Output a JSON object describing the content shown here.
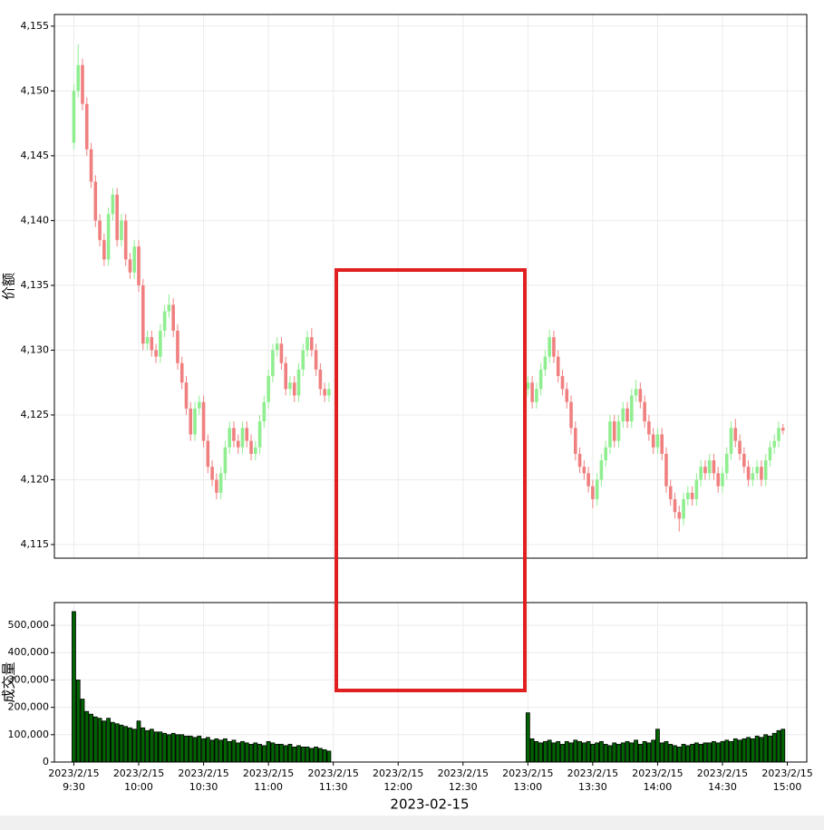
{
  "chart_data": [
    {
      "type": "candlestick",
      "y_label": "价额",
      "up_color": "#90ee90",
      "down_color": "#f08080",
      "grid": true,
      "xlim": [
        "9:21",
        "15:09"
      ],
      "ylim": [
        4113.95,
        4155.9
      ],
      "yticks": [
        {
          "value": 4115,
          "label": "4,115"
        },
        {
          "value": 4120,
          "label": "4,120"
        },
        {
          "value": 4125,
          "label": "4,125"
        },
        {
          "value": 4130,
          "label": "4,130"
        },
        {
          "value": 4135,
          "label": "4,135"
        },
        {
          "value": 4140,
          "label": "4,140"
        },
        {
          "value": 4145,
          "label": "4,145"
        },
        {
          "value": 4150,
          "label": "4,150"
        },
        {
          "value": 4155,
          "label": "4,155"
        }
      ],
      "x": [
        "9:30",
        "9:32",
        "9:34",
        "9:36",
        "9:38",
        "9:40",
        "9:42",
        "9:44",
        "9:46",
        "9:48",
        "9:50",
        "9:52",
        "9:54",
        "9:56",
        "9:58",
        "10:00",
        "10:02",
        "10:04",
        "10:06",
        "10:08",
        "10:10",
        "10:12",
        "10:14",
        "10:16",
        "10:18",
        "10:20",
        "10:22",
        "10:24",
        "10:26",
        "10:28",
        "10:30",
        "10:32",
        "10:34",
        "10:36",
        "10:38",
        "10:40",
        "10:42",
        "10:44",
        "10:46",
        "10:48",
        "10:50",
        "10:52",
        "10:54",
        "10:56",
        "10:58",
        "11:00",
        "11:02",
        "11:04",
        "11:06",
        "11:08",
        "11:10",
        "11:12",
        "11:14",
        "11:16",
        "11:18",
        "11:20",
        "11:22",
        "11:24",
        "11:26",
        "11:28",
        "13:00",
        "13:02",
        "13:04",
        "13:06",
        "13:08",
        "13:10",
        "13:12",
        "13:14",
        "13:16",
        "13:18",
        "13:20",
        "13:22",
        "13:24",
        "13:26",
        "13:28",
        "13:30",
        "13:32",
        "13:34",
        "13:36",
        "13:38",
        "13:40",
        "13:42",
        "13:44",
        "13:46",
        "13:48",
        "13:50",
        "13:52",
        "13:54",
        "13:56",
        "13:58",
        "14:00",
        "14:02",
        "14:04",
        "14:06",
        "14:08",
        "14:10",
        "14:12",
        "14:14",
        "14:16",
        "14:18",
        "14:20",
        "14:22",
        "14:24",
        "14:26",
        "14:28",
        "14:30",
        "14:32",
        "14:34",
        "14:36",
        "14:38",
        "14:40",
        "14:42",
        "14:44",
        "14:46",
        "14:48",
        "14:50",
        "14:52",
        "14:54",
        "14:56",
        "14:58"
      ],
      "open": [
        4146,
        4150,
        4152,
        4149,
        4145.5,
        4143,
        4140,
        4138.5,
        4137,
        4140.5,
        4142,
        4138.5,
        4140,
        4137,
        4136,
        4138,
        4135,
        4130.5,
        4131,
        4130,
        4129.5,
        4131.5,
        4133,
        4133.5,
        4131.5,
        4129,
        4127.5,
        4125.5,
        4123.5,
        4125.5,
        4126,
        4123,
        4121,
        4120,
        4119,
        4120.5,
        4122.5,
        4124,
        4123,
        4122.5,
        4124,
        4123,
        4122,
        4122.5,
        4124.5,
        4126,
        4128,
        4130,
        4130.5,
        4129,
        4127,
        4127.5,
        4126.5,
        4128.5,
        4130,
        4131,
        4130,
        4128.5,
        4127,
        4126.5,
        4127,
        4127.5,
        4126,
        4127,
        4128.5,
        4129.5,
        4131,
        4129.5,
        4128,
        4127,
        4126,
        4124,
        4122,
        4121,
        4120.5,
        4119.5,
        4118.5,
        4120,
        4121.5,
        4122.5,
        4124.5,
        4123,
        4124.5,
        4125.5,
        4124.5,
        4126.5,
        4127,
        4126,
        4124.5,
        4123.5,
        4122.5,
        4123.5,
        4122,
        4119.5,
        4118.5,
        4117.5,
        4117,
        4118.5,
        4119,
        4118.5,
        4120,
        4121,
        4120.5,
        4121.5,
        4120.5,
        4119.5,
        4120.5,
        4122,
        4124,
        4123,
        4122,
        4121,
        4120,
        4120.5,
        4121,
        4120,
        4121.5,
        4122.5,
        4123,
        4124
      ],
      "high": [
        4150.5,
        4153.6,
        4152.5,
        4149.5,
        4146,
        4143.5,
        4140.5,
        4139,
        4141,
        4142.5,
        4142.5,
        4140.5,
        4140.5,
        4137.5,
        4138.5,
        4138.5,
        4135.5,
        4131.5,
        4131.5,
        4130.5,
        4132,
        4133.5,
        4134.3,
        4134,
        4132,
        4129.5,
        4128,
        4126,
        4126,
        4126.5,
        4126.5,
        4123.5,
        4121.5,
        4120.5,
        4121,
        4123,
        4124.5,
        4124.5,
        4123.5,
        4124.5,
        4124.5,
        4123.5,
        4123,
        4125,
        4126.5,
        4128.5,
        4130.5,
        4131,
        4131,
        4129.5,
        4128,
        4128,
        4129,
        4130.5,
        4131.5,
        4131.7,
        4130.5,
        4129,
        4127.5,
        4127.5,
        4128,
        4128,
        4127.5,
        4129,
        4130,
        4131.6,
        4131.5,
        4130,
        4128.5,
        4127.5,
        4126.5,
        4124.5,
        4122.5,
        4121.5,
        4121,
        4120,
        4120.5,
        4122,
        4123,
        4125,
        4125,
        4125,
        4126,
        4126,
        4127,
        4127.7,
        4127.5,
        4126.5,
        4125,
        4124,
        4124,
        4124,
        4122.5,
        4120,
        4119,
        4118,
        4119,
        4119.5,
        4119.5,
        4120.5,
        4121.5,
        4121.5,
        4122,
        4122,
        4121,
        4121,
        4122.5,
        4124.5,
        4124.7,
        4123.5,
        4122.5,
        4121.5,
        4121,
        4121.5,
        4121.5,
        4122,
        4123,
        4123.5,
        4124.5,
        4124.3
      ],
      "low": [
        4145.5,
        4149.5,
        4148.5,
        4145,
        4142.5,
        4139.5,
        4138,
        4136.5,
        4136.5,
        4140,
        4138,
        4138,
        4136.5,
        4135.5,
        4135.5,
        4134.5,
        4130,
        4130,
        4129.5,
        4129,
        4129,
        4131,
        4132.5,
        4131,
        4128.5,
        4127,
        4125,
        4123,
        4123,
        4125,
        4122.5,
        4120.5,
        4119.5,
        4118.5,
        4118.5,
        4120,
        4122,
        4122.5,
        4122,
        4122,
        4122.5,
        4121.5,
        4121.5,
        4122,
        4124,
        4125.5,
        4127.5,
        4129.5,
        4128.5,
        4126.5,
        4126.5,
        4126,
        4126,
        4128,
        4129.5,
        4129.5,
        4128,
        4126.5,
        4126,
        4126,
        4126.5,
        4125.5,
        4125.5,
        4126.5,
        4128,
        4129,
        4129,
        4127.5,
        4126.5,
        4125.5,
        4123.5,
        4121.5,
        4120.5,
        4120,
        4119,
        4117.8,
        4118,
        4119.5,
        4121,
        4122,
        4122.5,
        4122.5,
        4124,
        4124,
        4124,
        4126,
        4125.5,
        4124,
        4123,
        4122,
        4122,
        4121.5,
        4119,
        4118,
        4117,
        4116,
        4116.5,
        4118,
        4118,
        4118,
        4119.5,
        4120,
        4120,
        4120,
        4119,
        4119,
        4120,
        4121.5,
        4122.5,
        4121.5,
        4120.5,
        4119.5,
        4119.5,
        4120,
        4119.5,
        4119.5,
        4121,
        4122,
        4122.5,
        4123.5
      ],
      "close": [
        4150,
        4152,
        4149,
        4145.5,
        4143,
        4140,
        4138.5,
        4137,
        4140.5,
        4142,
        4138.5,
        4140,
        4137,
        4136,
        4138,
        4135,
        4130.5,
        4131,
        4130,
        4129.5,
        4131.5,
        4133,
        4133.5,
        4131.5,
        4129,
        4127.5,
        4125.5,
        4123.5,
        4125.5,
        4126,
        4123,
        4121,
        4120,
        4119,
        4120.5,
        4122.5,
        4124,
        4123,
        4122.5,
        4124,
        4123,
        4122,
        4122.5,
        4124.5,
        4126,
        4128,
        4130,
        4130.5,
        4129,
        4127,
        4127.5,
        4126.5,
        4128.5,
        4130,
        4131,
        4130,
        4128.5,
        4127,
        4126.5,
        4127,
        4127.5,
        4126,
        4127,
        4128.5,
        4129.5,
        4131,
        4129.5,
        4128,
        4127,
        4126,
        4124,
        4122,
        4121,
        4120.5,
        4119.5,
        4118.5,
        4120,
        4121.5,
        4122.5,
        4124.5,
        4123,
        4124.5,
        4125.5,
        4124.5,
        4126.5,
        4127,
        4126,
        4124.5,
        4123.5,
        4122.5,
        4123.5,
        4122,
        4119.5,
        4118.5,
        4117.5,
        4117,
        4118.5,
        4119,
        4118.5,
        4120,
        4121,
        4120.5,
        4121.5,
        4120.5,
        4119.5,
        4120.5,
        4122,
        4124,
        4123,
        4122,
        4121,
        4120,
        4120.5,
        4121,
        4120,
        4121.5,
        4122.5,
        4123,
        4124,
        4123.8
      ]
    },
    {
      "type": "bar",
      "y_label": "成交量",
      "x_label": "2023-02-15",
      "color": "#006400",
      "grid": true,
      "xlim": [
        "9:21",
        "15:09"
      ],
      "ylim": [
        0,
        583000
      ],
      "yticks": [
        0,
        {
          "value": 100000,
          "label": "100,000"
        },
        {
          "value": 200000,
          "label": "200,000"
        },
        {
          "value": 300000,
          "label": "300,000"
        },
        {
          "value": 400000,
          "label": "400,000"
        },
        {
          "value": 500000,
          "label": "500,000"
        }
      ],
      "xticks": [
        {
          "value": "9:30",
          "label": "2023/2/15 9:30"
        },
        {
          "value": "10:00",
          "label": "2023/2/15 10:00"
        },
        {
          "value": "10:30",
          "label": "2023/2/15 10:30"
        },
        {
          "value": "11:00",
          "label": "2023/2/15 11:00"
        },
        {
          "value": "11:30",
          "label": "2023/2/15 11:30"
        },
        {
          "value": "12:00",
          "label": "2023/2/15 12:00"
        },
        {
          "value": "12:30",
          "label": "2023/2/15 12:30"
        },
        {
          "value": "13:00",
          "label": "2023/2/15 13:00"
        },
        {
          "value": "13:30",
          "label": "2023/2/15 13:30"
        },
        {
          "value": "14:00",
          "label": "2023/2/15 14:00"
        },
        {
          "value": "14:30",
          "label": "2023/2/15 14:30"
        },
        {
          "value": "15:00",
          "label": "2023/2/15 15:00"
        }
      ],
      "x": [
        "9:30",
        "9:32",
        "9:34",
        "9:36",
        "9:38",
        "9:40",
        "9:42",
        "9:44",
        "9:46",
        "9:48",
        "9:50",
        "9:52",
        "9:54",
        "9:56",
        "9:58",
        "10:00",
        "10:02",
        "10:04",
        "10:06",
        "10:08",
        "10:10",
        "10:12",
        "10:14",
        "10:16",
        "10:18",
        "10:20",
        "10:22",
        "10:24",
        "10:26",
        "10:28",
        "10:30",
        "10:32",
        "10:34",
        "10:36",
        "10:38",
        "10:40",
        "10:42",
        "10:44",
        "10:46",
        "10:48",
        "10:50",
        "10:52",
        "10:54",
        "10:56",
        "10:58",
        "11:00",
        "11:02",
        "11:04",
        "11:06",
        "11:08",
        "11:10",
        "11:12",
        "11:14",
        "11:16",
        "11:18",
        "11:20",
        "11:22",
        "11:24",
        "11:26",
        "11:28",
        "13:00",
        "13:02",
        "13:04",
        "13:06",
        "13:08",
        "13:10",
        "13:12",
        "13:14",
        "13:16",
        "13:18",
        "13:20",
        "13:22",
        "13:24",
        "13:26",
        "13:28",
        "13:30",
        "13:32",
        "13:34",
        "13:36",
        "13:38",
        "13:40",
        "13:42",
        "13:44",
        "13:46",
        "13:48",
        "13:50",
        "13:52",
        "13:54",
        "13:56",
        "13:58",
        "14:00",
        "14:02",
        "14:04",
        "14:06",
        "14:08",
        "14:10",
        "14:12",
        "14:14",
        "14:16",
        "14:18",
        "14:20",
        "14:22",
        "14:24",
        "14:26",
        "14:28",
        "14:30",
        "14:32",
        "14:34",
        "14:36",
        "14:38",
        "14:40",
        "14:42",
        "14:44",
        "14:46",
        "14:48",
        "14:50",
        "14:52",
        "14:54",
        "14:56",
        "14:58"
      ],
      "values": [
        550000,
        300000,
        230000,
        185000,
        175000,
        165000,
        160000,
        150000,
        160000,
        145000,
        140000,
        135000,
        130000,
        125000,
        120000,
        150000,
        125000,
        115000,
        120000,
        110000,
        110000,
        105000,
        100000,
        105000,
        100000,
        100000,
        95000,
        95000,
        90000,
        95000,
        85000,
        90000,
        80000,
        85000,
        80000,
        85000,
        75000,
        80000,
        70000,
        75000,
        70000,
        65000,
        70000,
        65000,
        60000,
        75000,
        70000,
        65000,
        65000,
        60000,
        65000,
        55000,
        60000,
        55000,
        55000,
        50000,
        55000,
        50000,
        45000,
        40000,
        180000,
        85000,
        75000,
        70000,
        75000,
        80000,
        70000,
        75000,
        65000,
        75000,
        70000,
        80000,
        75000,
        70000,
        75000,
        65000,
        70000,
        75000,
        65000,
        60000,
        70000,
        65000,
        70000,
        75000,
        70000,
        80000,
        65000,
        75000,
        70000,
        80000,
        120000,
        70000,
        75000,
        65000,
        60000,
        55000,
        65000,
        60000,
        65000,
        70000,
        65000,
        70000,
        70000,
        75000,
        70000,
        75000,
        80000,
        75000,
        85000,
        80000,
        85000,
        90000,
        85000,
        95000,
        90000,
        100000,
        95000,
        105000,
        115000,
        120000
      ]
    }
  ]
}
